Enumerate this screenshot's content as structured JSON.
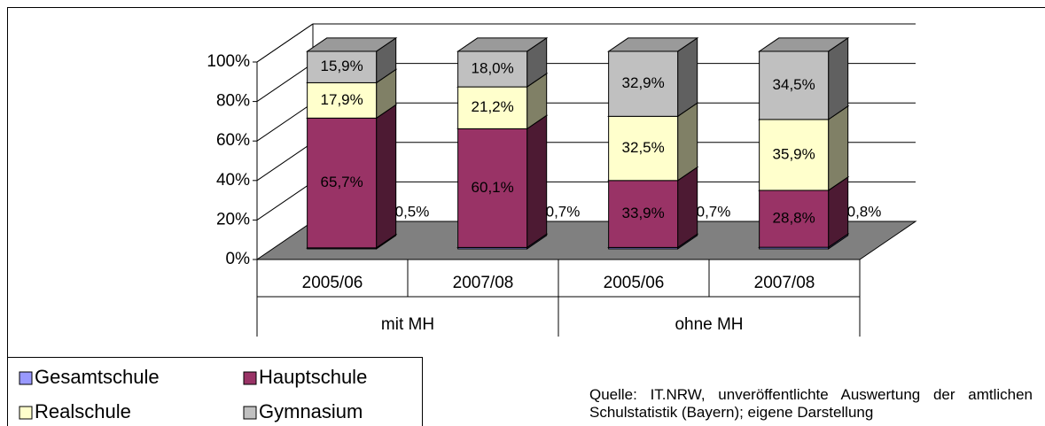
{
  "chart_data": {
    "type": "bar3d_stacked",
    "categories": [
      "2005/06",
      "2007/08",
      "2005/06",
      "2007/08"
    ],
    "category_groups": [
      "mit MH",
      "ohne MH"
    ],
    "ylim": [
      0,
      100
    ],
    "yticks": [
      {
        "value": 0,
        "label": "0%"
      },
      {
        "value": 20,
        "label": "20%"
      },
      {
        "value": 40,
        "label": "40%"
      },
      {
        "value": 60,
        "label": "60%"
      },
      {
        "value": 80,
        "label": "80%"
      },
      {
        "value": 100,
        "label": "100%"
      }
    ],
    "grid": true,
    "series": [
      {
        "name": "Gesamtschule",
        "color": "#9999ff",
        "values": [
          0.5,
          0.7,
          0.7,
          0.8
        ],
        "value_labels": [
          "0,5%",
          "0,7%",
          "0,7%",
          "0,8%"
        ]
      },
      {
        "name": "Hauptschule",
        "color": "#993366",
        "values": [
          65.7,
          60.1,
          33.9,
          28.8
        ],
        "value_labels": [
          "65,7%",
          "60,1%",
          "33,9%",
          "28,8%"
        ]
      },
      {
        "name": "Realschule",
        "color": "#ffffcc",
        "values": [
          17.9,
          21.2,
          32.5,
          35.9
        ],
        "value_labels": [
          "17,9%",
          "21,2%",
          "32,5%",
          "35,9%"
        ]
      },
      {
        "name": "Gymnasium",
        "color": "#c0c0c0",
        "values": [
          15.9,
          18.0,
          32.9,
          34.5
        ],
        "value_labels": [
          "15,9%",
          "18,0%",
          "32,9%",
          "34,5%"
        ]
      }
    ],
    "legend": "bottom-left",
    "source": "Quelle: IT.NRW, unveröffentlichte Auswertung der amtlichen Schulstatistik (Bayern); eigene Darstellung"
  }
}
